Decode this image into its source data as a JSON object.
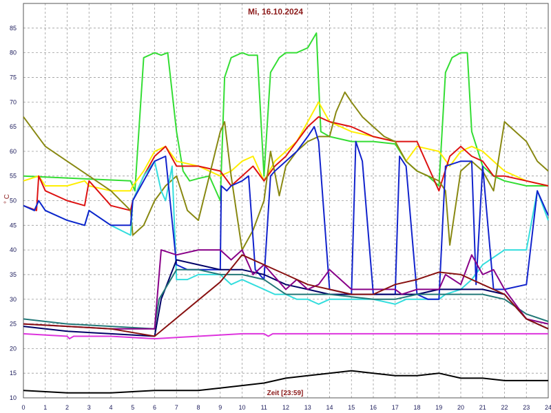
{
  "chart_data": {
    "type": "line",
    "title": "Mi, 16.10.2024",
    "xlabel": "Zeit [23:59]",
    "ylabel": "° C",
    "xlim": [
      0,
      24
    ],
    "ylim": [
      10,
      90
    ],
    "xticks": [
      0,
      1,
      2,
      3,
      4,
      5,
      6,
      7,
      8,
      9,
      10,
      11,
      12,
      13,
      14,
      15,
      16,
      17,
      18,
      19,
      20,
      21,
      22,
      23,
      24
    ],
    "yticks": [
      10,
      15,
      20,
      25,
      30,
      35,
      40,
      45,
      50,
      55,
      60,
      65,
      70,
      75,
      80,
      85
    ],
    "grid": true,
    "series": [
      {
        "color": "#33dd33",
        "x": [
          0,
          4.9,
          5.1,
          5.5,
          6,
          6.3,
          6.6,
          7,
          7.3,
          7.6,
          8,
          8.5,
          9,
          9.2,
          9.5,
          10,
          10.3,
          10.7,
          11,
          11.3,
          11.7,
          12,
          12.5,
          13,
          13.4,
          13.6,
          14,
          15,
          16,
          17,
          17.5,
          18,
          18.5,
          19,
          19.3,
          19.6,
          20,
          20.3,
          20.5,
          21,
          21.5,
          22,
          23,
          24
        ],
        "y": [
          55,
          54,
          52,
          79,
          80,
          79.5,
          80,
          64,
          56,
          54,
          54.5,
          55,
          50,
          75,
          79,
          80,
          79.5,
          79.5,
          55,
          76,
          79,
          80,
          80,
          81,
          84,
          64,
          63,
          62,
          62,
          61.5,
          58,
          56,
          55,
          53,
          76,
          79,
          80,
          80,
          64,
          57,
          55,
          54,
          53,
          53
        ]
      },
      {
        "color": "#ffee00",
        "x": [
          0,
          0.7,
          1,
          2,
          2.8,
          3,
          4,
          4.9,
          5,
          5.5,
          6,
          6.5,
          7,
          8,
          9,
          9.5,
          10,
          10.5,
          11,
          11.5,
          12,
          12.5,
          13,
          13.5,
          14,
          15,
          16,
          17,
          17.5,
          18,
          19,
          19.5,
          20,
          20.5,
          21,
          21.5,
          22,
          23,
          24
        ],
        "y": [
          54,
          55,
          53,
          53,
          54,
          53,
          52,
          52,
          53,
          56,
          60,
          61,
          58,
          57,
          55,
          56,
          58,
          59,
          54,
          58,
          60,
          62,
          66,
          70,
          66,
          64,
          63,
          62,
          58,
          61,
          60,
          57,
          60,
          61,
          60,
          58,
          56,
          54,
          53
        ]
      },
      {
        "color": "#dd1111",
        "x": [
          0,
          0.6,
          0.7,
          1,
          2,
          2.8,
          3,
          4,
          4.9,
          5,
          5.5,
          6,
          6.5,
          7,
          8,
          9,
          9.5,
          10,
          10.5,
          11,
          11.5,
          12,
          12.5,
          13,
          13.5,
          14,
          15,
          16,
          17,
          18,
          19,
          19.5,
          20,
          20.5,
          21,
          21.5,
          22,
          23,
          24
        ],
        "y": [
          49,
          48,
          55,
          52,
          50,
          49,
          54,
          49,
          48,
          50,
          55,
          59,
          61,
          57,
          57,
          56,
          53,
          55,
          57,
          54,
          57,
          59,
          62,
          65,
          67,
          66,
          65,
          63,
          62,
          62,
          52,
          59,
          61,
          59,
          58,
          55,
          55,
          54,
          53
        ]
      },
      {
        "color": "#888811",
        "x": [
          0,
          0.5,
          1,
          2,
          3,
          4,
          4.9,
          5,
          5.5,
          6,
          6.5,
          7,
          7.5,
          8,
          8.5,
          9,
          9.2,
          9.5,
          10,
          10.5,
          11,
          11.3,
          11.7,
          12,
          12.5,
          13,
          13.5,
          14,
          14.3,
          14.7,
          15,
          15.5,
          16,
          16.5,
          17,
          17.5,
          18,
          19,
          19.3,
          19.5,
          20,
          20.5,
          21,
          21.5,
          22,
          22.5,
          23,
          23.5,
          24
        ],
        "y": [
          67,
          64,
          61,
          58,
          55,
          52,
          48,
          43,
          45,
          50,
          53,
          55,
          48,
          46,
          55,
          64,
          66,
          55,
          40,
          44,
          50,
          60,
          51,
          57,
          60,
          62,
          63,
          63,
          68,
          72,
          70,
          67,
          65,
          63,
          62,
          58,
          56,
          54,
          52,
          41,
          56,
          58,
          56,
          52,
          66,
          64,
          62,
          58,
          56
        ]
      },
      {
        "color": "#33dddd",
        "x": [
          0,
          0.5,
          0.7,
          1,
          2,
          2.8,
          3,
          4,
          4.9,
          5,
          5.5,
          6,
          6.3,
          6.5,
          6.8,
          7,
          7.5,
          8,
          9,
          9.5,
          10,
          10.5,
          11,
          11.5,
          12,
          12.5,
          13,
          13.5,
          14,
          15,
          16,
          17,
          17.5,
          18,
          19,
          19.3,
          20,
          20.5,
          21,
          22,
          23,
          23.5,
          24
        ],
        "y": [
          49,
          48,
          50,
          48,
          46,
          45,
          48,
          45,
          43,
          50,
          55,
          58,
          52,
          50,
          57,
          34,
          34,
          35,
          35,
          33,
          34,
          33,
          32,
          31,
          31,
          30,
          30,
          29,
          30,
          30,
          30,
          29,
          30,
          30,
          30,
          31,
          32,
          34,
          37,
          40,
          40,
          52,
          46
        ]
      },
      {
        "color": "#1122cc",
        "x": [
          0,
          0.5,
          0.7,
          1,
          2,
          2.8,
          3,
          4,
          4.9,
          5,
          5.5,
          6,
          6.5,
          7,
          7.5,
          8,
          9,
          9.05,
          9.3,
          9.5,
          10,
          10.3,
          10.6,
          11,
          11.3,
          11.5,
          12,
          12.5,
          13,
          13.3,
          13.5,
          14,
          15,
          15.2,
          15.5,
          16,
          17,
          17.2,
          17.5,
          18,
          18.5,
          19,
          19.3,
          20,
          20.5,
          20.7,
          21,
          21.5,
          22,
          23,
          23.5,
          24
        ],
        "y": [
          49,
          48,
          50,
          48,
          46,
          45,
          48,
          45,
          45,
          50,
          54,
          58,
          59,
          37,
          36,
          36,
          36,
          53,
          52,
          53,
          54,
          55,
          36,
          34,
          55,
          56,
          58,
          60,
          63,
          65,
          62,
          32,
          31,
          62,
          58,
          31,
          31,
          59,
          57,
          31,
          30,
          30,
          57,
          58,
          58,
          33,
          57,
          32,
          32,
          33,
          52,
          47
        ]
      },
      {
        "color": "#000066",
        "x": [
          0,
          2,
          4,
          6,
          6.3,
          7,
          8,
          9,
          10,
          11,
          12,
          13,
          14,
          15,
          16,
          17,
          18,
          19,
          20,
          21,
          22,
          23,
          24
        ],
        "y": [
          24.5,
          23.5,
          23,
          22.5,
          30,
          38,
          37,
          36,
          36,
          35,
          33,
          32,
          31,
          31,
          31,
          31,
          31,
          32,
          32,
          32,
          31,
          26,
          24
        ]
      },
      {
        "color": "#227777",
        "x": [
          0,
          2,
          4,
          6,
          6.2,
          7,
          8,
          9,
          10,
          11,
          12,
          13,
          14,
          15,
          16,
          17,
          18,
          19,
          20,
          21,
          22,
          23,
          24
        ],
        "y": [
          26,
          25,
          24.5,
          24,
          30,
          36,
          36,
          35,
          35,
          34,
          31,
          31,
          31,
          30.5,
          30,
          30,
          31,
          31,
          31,
          31,
          30,
          27,
          25.5
        ]
      },
      {
        "color": "#880088",
        "x": [
          0,
          2,
          4,
          6,
          6.3,
          7,
          8,
          9,
          9.5,
          10,
          10.5,
          11,
          12,
          12.5,
          13,
          13.5,
          14,
          15,
          16,
          17,
          17.3,
          18,
          19,
          19.3,
          20,
          20.5,
          21,
          21.5,
          22,
          23,
          24
        ],
        "y": [
          25,
          24.5,
          24,
          24,
          40,
          39,
          40,
          40,
          38,
          40,
          35,
          37,
          32,
          34,
          32,
          33,
          36,
          32,
          32,
          32,
          31,
          32,
          32,
          35,
          33,
          39,
          35,
          36,
          32,
          26,
          25
        ]
      },
      {
        "color": "#881111",
        "x": [
          0,
          2,
          4,
          6,
          9,
          10,
          11,
          12,
          13,
          14,
          15,
          16,
          17,
          18,
          19,
          20,
          21,
          22,
          23,
          24
        ],
        "y": [
          25,
          24.5,
          24,
          22.5,
          33.5,
          39,
          37,
          35,
          33,
          32,
          31,
          31,
          33,
          34,
          35.5,
          35,
          33,
          31,
          26,
          24
        ]
      },
      {
        "color": "#dd33dd",
        "x": [
          0,
          2,
          2.1,
          2.3,
          4,
          6,
          8,
          10,
          11,
          11.2,
          11.4,
          12,
          14,
          16,
          18,
          20,
          22,
          24
        ],
        "y": [
          23,
          22.5,
          22,
          22.5,
          22.5,
          22,
          22.5,
          23,
          23,
          22.5,
          23,
          23,
          23,
          23,
          23,
          23,
          23,
          23
        ]
      },
      {
        "color": "#000000",
        "x": [
          0,
          2,
          4,
          6,
          7,
          8,
          9,
          10,
          11,
          12,
          13,
          14,
          15,
          16,
          17,
          18,
          19,
          20,
          21,
          22,
          23,
          24
        ],
        "y": [
          11.5,
          11,
          11,
          11.5,
          11.5,
          11.5,
          12,
          12.5,
          13,
          14,
          14.5,
          15,
          15.5,
          15,
          14.5,
          14.5,
          15,
          14,
          14,
          13.5,
          13.5,
          13.5
        ]
      }
    ]
  }
}
